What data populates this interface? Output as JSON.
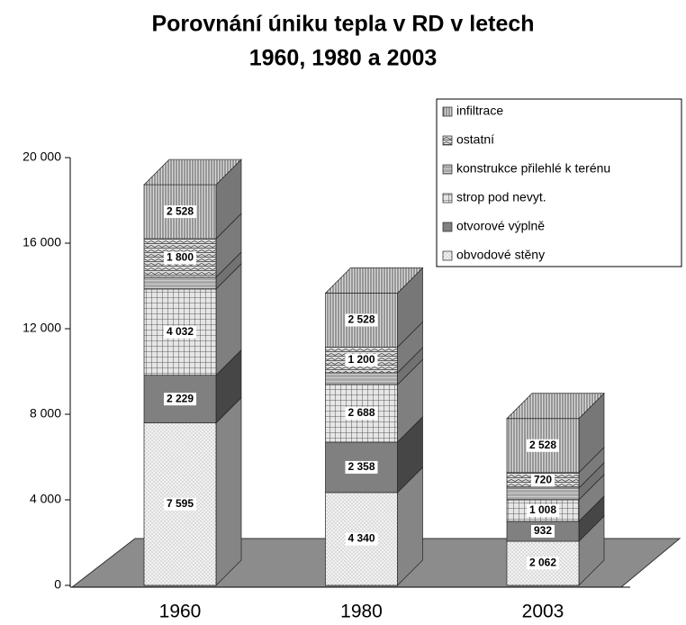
{
  "chart_data": {
    "type": "bar3d-stacked",
    "title": [
      "Porovnání úniku tepla v RD v letech",
      "1960, 1980 a 2003"
    ],
    "categories": [
      "1960",
      "1980",
      "2003"
    ],
    "series": [
      {
        "name": "obvodové stěny",
        "color": "#f2f2f2",
        "values": [
          7595,
          4340,
          2062
        ],
        "value_labels": [
          "7 595",
          "4 340",
          "2 062"
        ]
      },
      {
        "name": "otvorové výplně",
        "color": "#808080",
        "values": [
          2229,
          2358,
          932
        ],
        "value_labels": [
          "2 229",
          "2 358",
          "932"
        ]
      },
      {
        "name": "strop pod nevyt.",
        "color": "#e6e6e6",
        "values": [
          4032,
          2688,
          1008
        ],
        "value_labels": [
          "4 032",
          "2 688",
          "1 008"
        ]
      },
      {
        "name": "konstrukce přilehlé k terénu",
        "color": "#cfcfcf",
        "values": [
          550,
          550,
          550
        ]
      },
      {
        "name": "ostatní",
        "color": "#e0e0e0",
        "values": [
          1800,
          1200,
          720
        ],
        "value_labels": [
          "1 800",
          "1 200",
          "720"
        ]
      },
      {
        "name": "infiltrace",
        "color": "#d9d9d9",
        "values": [
          2528,
          2528,
          2528
        ],
        "value_labels": [
          "2 528",
          "2 528",
          "2 528"
        ]
      }
    ],
    "ylim": [
      0,
      20000
    ],
    "yticks": [
      0,
      {
        "value": 4000,
        "label": "4 000"
      },
      {
        "value": 8000,
        "label": "8 000"
      },
      {
        "value": 12000,
        "label": "12 000"
      },
      {
        "value": 16000,
        "label": "16 000"
      },
      {
        "value": 20000,
        "label": "20 000"
      }
    ]
  }
}
